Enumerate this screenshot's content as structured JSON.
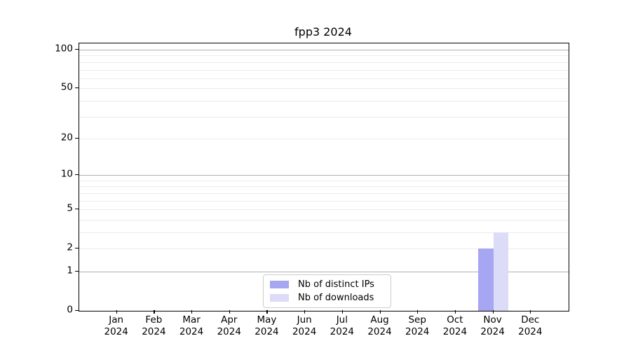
{
  "chart_data": {
    "type": "bar",
    "title": "fpp3 2024",
    "categories": [
      "Jan",
      "Feb",
      "Mar",
      "Apr",
      "May",
      "Jun",
      "Jul",
      "Aug",
      "Sep",
      "Oct",
      "Nov",
      "Dec"
    ],
    "year_label": "2024",
    "series": [
      {
        "name": "Nb of distinct IPs",
        "color": "#a6a6f2",
        "values": [
          0,
          0,
          0,
          0,
          0,
          0,
          0,
          0,
          0,
          0,
          2,
          0
        ]
      },
      {
        "name": "Nb of downloads",
        "color": "#dcdcf8",
        "values": [
          0,
          0,
          0,
          0,
          0,
          0,
          0,
          0,
          0,
          0,
          3,
          0
        ]
      }
    ],
    "xlabel": "",
    "ylabel": "",
    "y_scale": "log1p",
    "y_ticks": [
      0,
      1,
      2,
      5,
      10,
      20,
      50,
      100
    ],
    "ylim": [
      0,
      112
    ],
    "grid": {
      "major_lines": [
        1,
        10,
        100
      ],
      "minor_lines": [
        2,
        3,
        4,
        5,
        6,
        7,
        8,
        9,
        20,
        30,
        40,
        50,
        60,
        70,
        80,
        90
      ],
      "major_color": "#b0b0b0",
      "minor_color": "#ebebeb"
    },
    "legend": {
      "position": "lower center inside",
      "border_color": "#cccccc",
      "background": "#ffffff"
    },
    "axis_color": "#000000",
    "background": "#ffffff"
  }
}
